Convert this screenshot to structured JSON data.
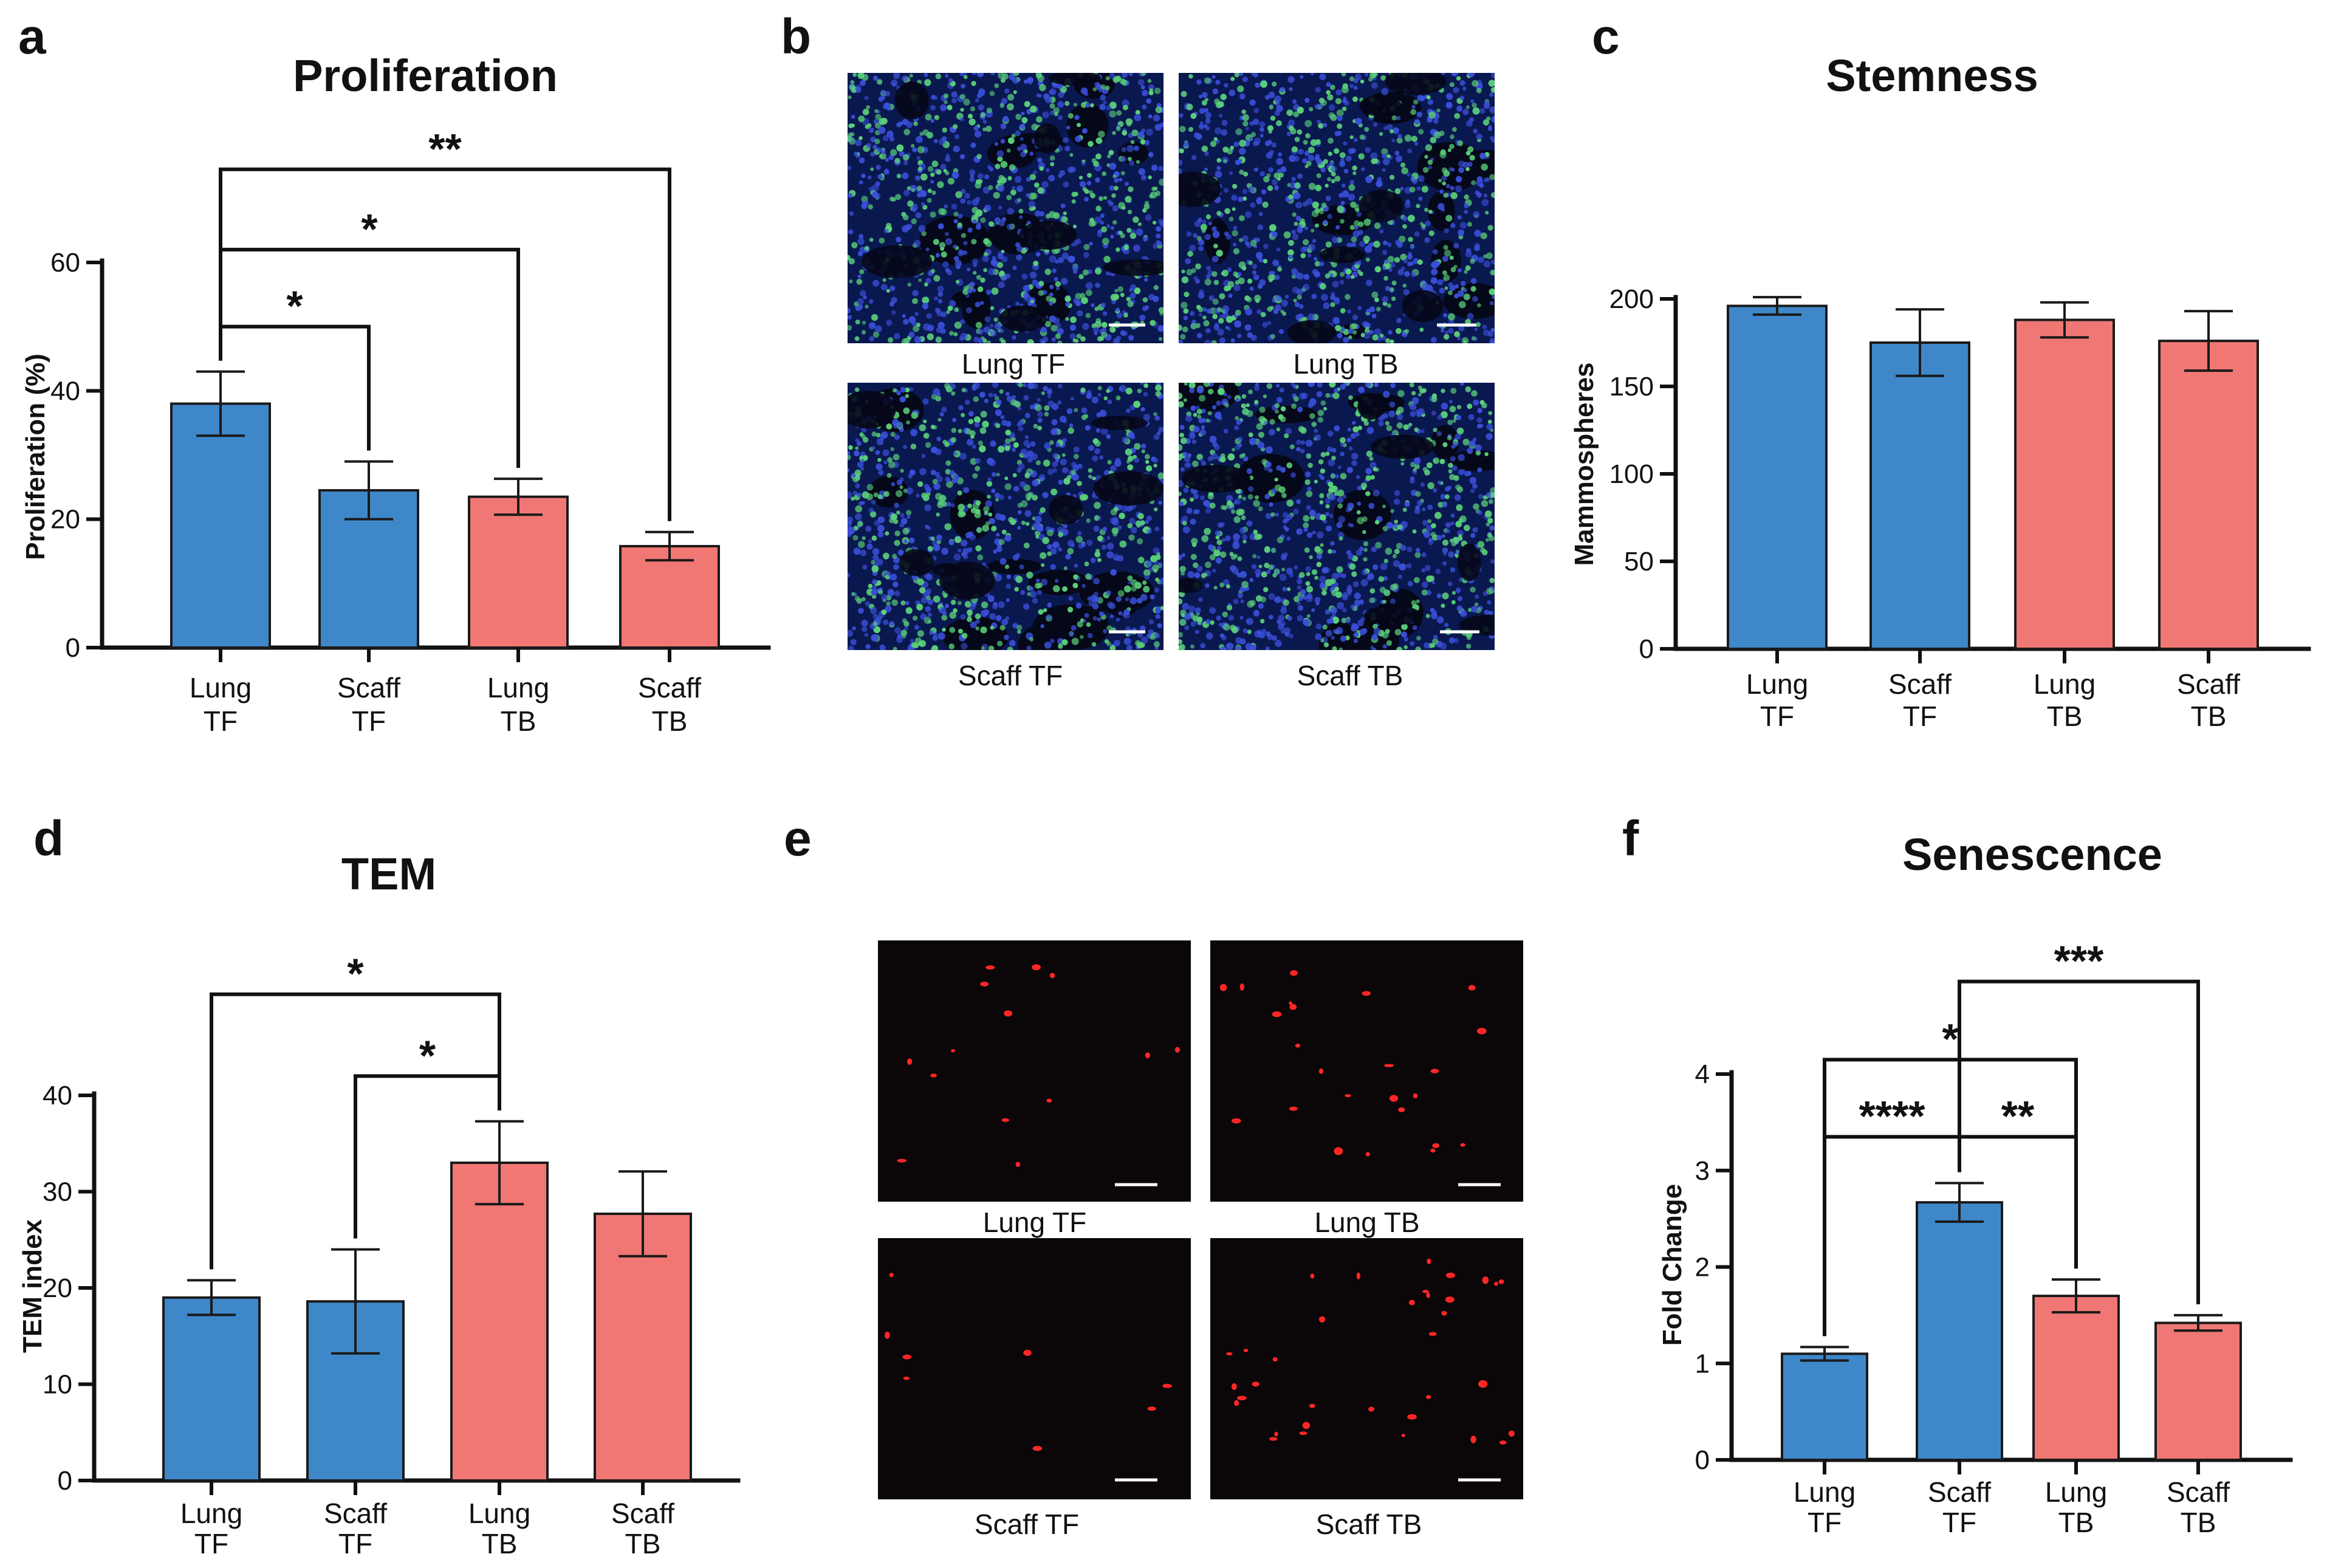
{
  "colors": {
    "blue": "#3e88c9",
    "red": "#f07774",
    "micro_blue_bg": "#0a1850",
    "micro_blue_cell": "#3a4fd8",
    "micro_green_cell": "#5ad07a",
    "micro_dark_bg": "#0b0607",
    "micro_red_cell": "#ff2626"
  },
  "chart_data": [
    {
      "id": "a",
      "panel_letter": "a",
      "type": "bar",
      "title": "Proliferation",
      "ylabel": "Proliferation (%)",
      "xlabel": "",
      "ylim": [
        0,
        60
      ],
      "yticks": [
        0,
        20,
        40,
        60
      ],
      "categories": [
        [
          "Lung",
          "TF"
        ],
        [
          "Scaff",
          "TF"
        ],
        [
          "Lung",
          "TB"
        ],
        [
          "Scaff",
          "TB"
        ]
      ],
      "values": [
        38,
        24.5,
        23.5,
        15.8
      ],
      "errors": [
        5,
        4.5,
        2.8,
        2.2
      ],
      "bar_colors": [
        "blue",
        "blue",
        "red",
        "red"
      ],
      "significance": [
        {
          "from": 0,
          "to": 1,
          "label": "*",
          "y": 50
        },
        {
          "from": 0,
          "to": 2,
          "label": "*",
          "y": 62
        },
        {
          "from": 0,
          "to": 3,
          "label": "**",
          "y": 74.5
        }
      ]
    },
    {
      "id": "c",
      "panel_letter": "c",
      "type": "bar",
      "title": "Stemness",
      "ylabel": "Mammospheres",
      "xlabel": "",
      "ylim": [
        0,
        200
      ],
      "yticks": [
        0,
        50,
        100,
        150,
        200
      ],
      "categories": [
        [
          "Lung",
          "TF"
        ],
        [
          "Scaff",
          "TF"
        ],
        [
          "Lung",
          "TB"
        ],
        [
          "Scaff",
          "TB"
        ]
      ],
      "values": [
        196,
        175,
        188,
        176
      ],
      "errors": [
        5,
        19,
        10,
        17
      ],
      "bar_colors": [
        "blue",
        "blue",
        "red",
        "red"
      ],
      "significance": []
    },
    {
      "id": "d",
      "panel_letter": "d",
      "type": "bar",
      "title": "TEM",
      "ylabel": "TEM index",
      "xlabel": "",
      "ylim": [
        0,
        40
      ],
      "yticks": [
        0,
        10,
        20,
        30,
        40
      ],
      "categories": [
        [
          "Lung",
          "TF"
        ],
        [
          "Scaff",
          "TF"
        ],
        [
          "Lung",
          "TB"
        ],
        [
          "Scaff",
          "TB"
        ]
      ],
      "values": [
        19,
        18.6,
        33,
        27.7
      ],
      "errors": [
        1.8,
        5.4,
        4.3,
        4.4
      ],
      "bar_colors": [
        "blue",
        "blue",
        "red",
        "red"
      ],
      "significance": [
        {
          "from": 1,
          "to": 2,
          "label": "*",
          "y": 42
        },
        {
          "from": 0,
          "to": 2,
          "label": "*",
          "y": 50.5
        }
      ]
    },
    {
      "id": "f",
      "panel_letter": "f",
      "type": "bar",
      "title": "Senescence",
      "ylabel": "Fold Change",
      "xlabel": "",
      "ylim": [
        0,
        4
      ],
      "yticks": [
        0,
        1,
        2,
        3,
        4
      ],
      "categories": [
        [
          "Lung",
          "TF"
        ],
        [
          "Scaff",
          "TF"
        ],
        [
          "Lung",
          "TB"
        ],
        [
          "Scaff",
          "TB"
        ]
      ],
      "values": [
        1.1,
        2.67,
        1.7,
        1.42
      ],
      "errors": [
        0.07,
        0.2,
        0.17,
        0.08
      ],
      "bar_colors": [
        "blue",
        "blue",
        "red",
        "red"
      ],
      "significance": [
        {
          "from": 0,
          "to": 1,
          "label": "****",
          "y": 3.35
        },
        {
          "from": 1,
          "to": 2,
          "label": "**",
          "y": 3.35
        },
        {
          "from": 0,
          "to": 2,
          "label": "*",
          "y": 4.15
        },
        {
          "from": 1,
          "to": 3,
          "label": "***",
          "y": 4.96
        }
      ]
    }
  ],
  "image_panels": [
    {
      "id": "b",
      "panel_letter": "b",
      "stain": "green",
      "images": [
        {
          "caption": "Lung TF",
          "seed": 11
        },
        {
          "caption": "Lung TB",
          "seed": 23
        },
        {
          "caption": "Scaff TF",
          "seed": 37
        },
        {
          "caption": "Scaff TB",
          "seed": 51
        }
      ]
    },
    {
      "id": "e",
      "panel_letter": "e",
      "stain": "red",
      "images": [
        {
          "caption": "Lung TF",
          "seed": 7,
          "cells": 14
        },
        {
          "caption": "Lung TB",
          "seed": 19,
          "cells": 24
        },
        {
          "caption": "Scaff TF",
          "seed": 29,
          "cells": 8
        },
        {
          "caption": "Scaff TB",
          "seed": 43,
          "cells": 34
        }
      ]
    }
  ]
}
